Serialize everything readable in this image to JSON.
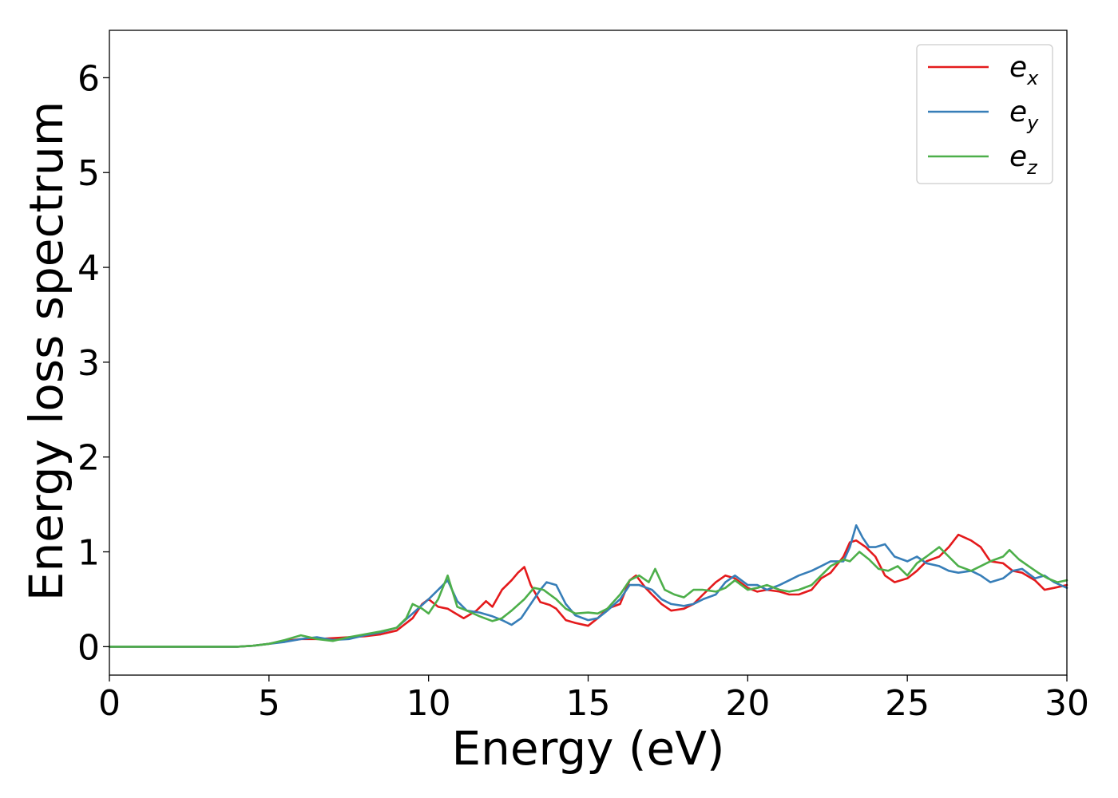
{
  "chart_data": {
    "type": "line",
    "title": "",
    "xlabel": "Energy (eV)",
    "ylabel": "Energy loss spectrum",
    "xlim": [
      0,
      30
    ],
    "ylim": [
      -0.3,
      6.5
    ],
    "xticks": [
      "0",
      "5",
      "10",
      "15",
      "20",
      "25",
      "30"
    ],
    "yticks": [
      "0",
      "1",
      "2",
      "3",
      "4",
      "5",
      "6"
    ],
    "grid": false,
    "legend_position": "top-right",
    "series": [
      {
        "name": "e",
        "subscript": "x",
        "color": "#e41a1c",
        "x": [
          0,
          1,
          2,
          3,
          4,
          4.5,
          5,
          5.5,
          6,
          6.5,
          7,
          7.5,
          8,
          8.5,
          9,
          9.5,
          9.8,
          10,
          10.3,
          10.6,
          10.8,
          11.1,
          11.5,
          11.8,
          12,
          12.3,
          12.6,
          12.8,
          13,
          13.2,
          13.5,
          13.8,
          14,
          14.3,
          14.6,
          15,
          15.3,
          15.6,
          16,
          16.3,
          16.5,
          16.8,
          17,
          17.3,
          17.6,
          18,
          18.3,
          18.6,
          19,
          19.3,
          19.6,
          20,
          20.3,
          20.6,
          21,
          21.3,
          21.6,
          22,
          22.3,
          22.6,
          23,
          23.2,
          23.4,
          23.7,
          24,
          24.3,
          24.6,
          25,
          25.3,
          25.6,
          26,
          26.3,
          26.6,
          26.8,
          27,
          27.3,
          27.6,
          28,
          28.3,
          28.6,
          29,
          29.3,
          29.6,
          30
        ],
        "y": [
          0,
          0,
          0,
          0,
          0,
          0.01,
          0.03,
          0.06,
          0.08,
          0.08,
          0.09,
          0.1,
          0.11,
          0.13,
          0.17,
          0.3,
          0.45,
          0.5,
          0.42,
          0.4,
          0.36,
          0.3,
          0.38,
          0.48,
          0.42,
          0.6,
          0.7,
          0.78,
          0.84,
          0.65,
          0.47,
          0.44,
          0.4,
          0.28,
          0.25,
          0.22,
          0.3,
          0.4,
          0.45,
          0.7,
          0.75,
          0.62,
          0.55,
          0.45,
          0.38,
          0.4,
          0.45,
          0.55,
          0.68,
          0.75,
          0.72,
          0.62,
          0.58,
          0.6,
          0.58,
          0.55,
          0.55,
          0.6,
          0.72,
          0.78,
          0.95,
          1.1,
          1.12,
          1.05,
          0.95,
          0.75,
          0.68,
          0.72,
          0.8,
          0.9,
          0.95,
          1.05,
          1.18,
          1.15,
          1.12,
          1.05,
          0.9,
          0.88,
          0.8,
          0.78,
          0.7,
          0.6,
          0.62,
          0.65
        ]
      },
      {
        "name": "e",
        "subscript": "y",
        "color": "#377eb8",
        "x": [
          0,
          1,
          2,
          3,
          4,
          4.5,
          5,
          5.5,
          6,
          6.5,
          7,
          7.5,
          8,
          8.5,
          9,
          9.5,
          10,
          10.3,
          10.6,
          10.9,
          11.2,
          11.6,
          12,
          12.3,
          12.6,
          12.9,
          13.2,
          13.5,
          13.7,
          14,
          14.3,
          14.6,
          15,
          15.3,
          15.6,
          16,
          16.3,
          16.6,
          17,
          17.3,
          17.6,
          18,
          18.3,
          18.6,
          19,
          19.3,
          19.6,
          20,
          20.3,
          20.6,
          21,
          21.3,
          21.6,
          22,
          22.3,
          22.6,
          23,
          23.2,
          23.4,
          23.6,
          23.8,
          24,
          24.3,
          24.6,
          25,
          25.3,
          25.6,
          26,
          26.3,
          26.6,
          27,
          27.3,
          27.6,
          28,
          28.3,
          28.6,
          29,
          29.3,
          29.6,
          30
        ],
        "y": [
          0,
          0,
          0,
          0,
          0,
          0.01,
          0.03,
          0.05,
          0.08,
          0.1,
          0.07,
          0.08,
          0.12,
          0.15,
          0.2,
          0.35,
          0.5,
          0.6,
          0.7,
          0.48,
          0.38,
          0.36,
          0.32,
          0.28,
          0.23,
          0.3,
          0.45,
          0.6,
          0.68,
          0.65,
          0.45,
          0.33,
          0.28,
          0.3,
          0.38,
          0.5,
          0.65,
          0.65,
          0.6,
          0.5,
          0.45,
          0.43,
          0.45,
          0.5,
          0.55,
          0.68,
          0.75,
          0.65,
          0.65,
          0.6,
          0.65,
          0.7,
          0.75,
          0.8,
          0.85,
          0.9,
          0.9,
          1.05,
          1.28,
          1.15,
          1.05,
          1.05,
          1.08,
          0.95,
          0.9,
          0.95,
          0.88,
          0.85,
          0.8,
          0.78,
          0.8,
          0.75,
          0.68,
          0.72,
          0.8,
          0.82,
          0.72,
          0.75,
          0.68,
          0.62
        ]
      },
      {
        "name": "e",
        "subscript": "z",
        "color": "#4daf4a",
        "x": [
          0,
          1,
          2,
          3,
          4,
          4.5,
          5,
          5.5,
          6,
          6.5,
          7,
          7.5,
          8,
          8.5,
          9,
          9.3,
          9.5,
          9.8,
          10,
          10.3,
          10.6,
          10.9,
          11.2,
          11.6,
          12,
          12.3,
          12.6,
          13,
          13.3,
          13.6,
          14,
          14.3,
          14.6,
          15,
          15.3,
          15.6,
          16,
          16.3,
          16.6,
          16.9,
          17.1,
          17.4,
          17.7,
          18,
          18.3,
          18.6,
          19,
          19.3,
          19.6,
          20,
          20.3,
          20.6,
          21,
          21.3,
          21.6,
          22,
          22.3,
          22.6,
          23,
          23.2,
          23.5,
          23.8,
          24.1,
          24.4,
          24.7,
          25,
          25.3,
          25.6,
          26,
          26.3,
          26.6,
          27,
          27.3,
          27.6,
          28,
          28.2,
          28.5,
          28.8,
          29.1,
          29.4,
          29.7,
          30
        ],
        "y": [
          0,
          0,
          0,
          0,
          0,
          0.01,
          0.03,
          0.07,
          0.12,
          0.08,
          0.06,
          0.1,
          0.13,
          0.16,
          0.2,
          0.3,
          0.45,
          0.4,
          0.35,
          0.5,
          0.75,
          0.42,
          0.38,
          0.32,
          0.27,
          0.3,
          0.38,
          0.5,
          0.62,
          0.6,
          0.5,
          0.4,
          0.35,
          0.36,
          0.35,
          0.4,
          0.55,
          0.7,
          0.75,
          0.68,
          0.82,
          0.6,
          0.55,
          0.52,
          0.6,
          0.6,
          0.58,
          0.62,
          0.7,
          0.6,
          0.62,
          0.65,
          0.6,
          0.58,
          0.6,
          0.65,
          0.75,
          0.85,
          0.92,
          0.9,
          1.0,
          0.92,
          0.82,
          0.8,
          0.85,
          0.75,
          0.88,
          0.95,
          1.05,
          0.95,
          0.85,
          0.8,
          0.85,
          0.9,
          0.95,
          1.02,
          0.92,
          0.85,
          0.78,
          0.72,
          0.68,
          0.7
        ]
      }
    ]
  }
}
